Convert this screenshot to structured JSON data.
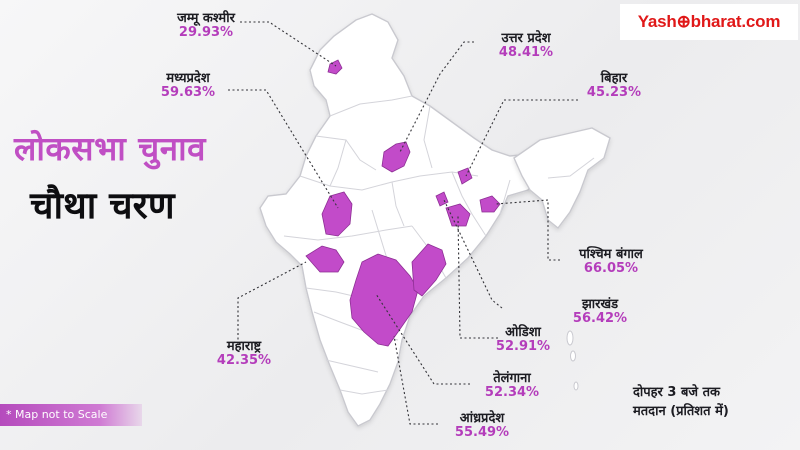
{
  "brand": {
    "logo_text": "Yash⊕bharat.com"
  },
  "headline": "लोकसभा चुनाव",
  "subheadline": "चौथा चरण",
  "note": "* Map not to Scale",
  "time_note": {
    "line1": "दोपहर 3 बजे तक",
    "line2": "मतदान (प्रतिशत में)"
  },
  "colors": {
    "highlight": "#c24bc9",
    "highlight_dark": "#8d2f94",
    "land": "#ffffff",
    "border": "#c9c9cf",
    "percent_text": "#b43dbb",
    "headline": "#c04fc4",
    "logo": "#e01818"
  },
  "states": [
    {
      "key": "jk",
      "name": "जम्मू कश्मीर",
      "turnout": "29.93%"
    },
    {
      "key": "up",
      "name": "उत्तर प्रदेश",
      "turnout": "48.41%"
    },
    {
      "key": "mp",
      "name": "मध्यप्रदेश",
      "turnout": "59.63%"
    },
    {
      "key": "bihar",
      "name": "बिहार",
      "turnout": "45.23%"
    },
    {
      "key": "wb",
      "name": "पश्चिम बंगाल",
      "turnout": "66.05%"
    },
    {
      "key": "jharkhand",
      "name": "झारखंड",
      "turnout": "56.42%"
    },
    {
      "key": "odisha",
      "name": "ओडिशा",
      "turnout": "52.91%"
    },
    {
      "key": "maha",
      "name": "महाराष्ट्र",
      "turnout": "42.35%"
    },
    {
      "key": "telangana",
      "name": "तेलंगाना",
      "turnout": "52.34%"
    },
    {
      "key": "ap",
      "name": "आंध्रप्रदेश",
      "turnout": "55.49%"
    }
  ]
}
